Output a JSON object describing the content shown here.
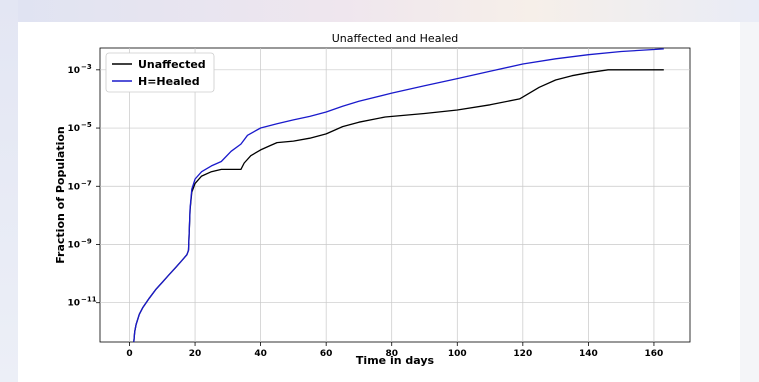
{
  "chart_data": {
    "type": "line",
    "title": "Unaffected and Healed",
    "xlabel": "Time in days",
    "ylabel": "Fraction of Population",
    "xlim": [
      -9,
      171
    ],
    "ylim_log10": [
      -12.35,
      -2.25
    ],
    "yscale": "log",
    "grid": true,
    "legend_position": "top-left",
    "x_ticks": [
      0,
      20,
      40,
      60,
      80,
      100,
      120,
      140,
      160
    ],
    "y_ticks": [
      {
        "base": "10",
        "exp": "−11",
        "log10": -11
      },
      {
        "base": "10",
        "exp": "−9",
        "log10": -9
      },
      {
        "base": "10",
        "exp": "−7",
        "log10": -7
      },
      {
        "base": "10",
        "exp": "−5",
        "log10": -5
      },
      {
        "base": "10",
        "exp": "−3",
        "log10": -3
      }
    ],
    "series": [
      {
        "name": "Unaffected",
        "color": "#000000",
        "x": [
          1.3,
          1.6,
          2,
          3,
          4,
          6,
          8,
          10,
          12,
          14,
          16,
          17.5,
          18,
          18.5,
          19,
          20,
          22,
          25,
          28,
          31,
          34,
          35,
          37,
          40,
          43,
          45,
          50,
          55,
          60,
          65,
          70,
          78,
          90,
          100,
          110,
          119,
          125,
          130,
          135,
          140,
          146,
          150,
          155,
          160,
          163
        ],
        "log10_y": [
          -12.35,
          -12.0,
          -11.75,
          -11.4,
          -11.18,
          -10.85,
          -10.55,
          -10.3,
          -10.05,
          -9.8,
          -9.55,
          -9.35,
          -9.2,
          -7.8,
          -7.2,
          -6.9,
          -6.65,
          -6.5,
          -6.42,
          -6.42,
          -6.42,
          -6.2,
          -5.95,
          -5.75,
          -5.6,
          -5.5,
          -5.45,
          -5.35,
          -5.2,
          -4.95,
          -4.8,
          -4.62,
          -4.5,
          -4.38,
          -4.2,
          -4.0,
          -3.6,
          -3.35,
          -3.2,
          -3.1,
          -3.0,
          -3.0,
          -3.0,
          -3.0,
          -3.0
        ]
      },
      {
        "name": "H=Healed",
        "color": "#1a1acc",
        "x": [
          1.3,
          1.6,
          2,
          3,
          4,
          6,
          8,
          10,
          12,
          14,
          16,
          17.5,
          18,
          18.5,
          19,
          20,
          22,
          25,
          28,
          31,
          34,
          36,
          40,
          45,
          50,
          55,
          60,
          65,
          70,
          80,
          90,
          100,
          110,
          120,
          130,
          140,
          150,
          160,
          163
        ],
        "log10_y": [
          -12.35,
          -12.0,
          -11.75,
          -11.4,
          -11.18,
          -10.85,
          -10.55,
          -10.3,
          -10.05,
          -9.8,
          -9.55,
          -9.35,
          -9.2,
          -7.75,
          -7.1,
          -6.75,
          -6.5,
          -6.3,
          -6.15,
          -5.8,
          -5.55,
          -5.25,
          -5.0,
          -4.85,
          -4.72,
          -4.6,
          -4.45,
          -4.25,
          -4.08,
          -3.8,
          -3.55,
          -3.3,
          -3.05,
          -2.8,
          -2.62,
          -2.48,
          -2.37,
          -2.3,
          -2.28
        ]
      }
    ]
  }
}
